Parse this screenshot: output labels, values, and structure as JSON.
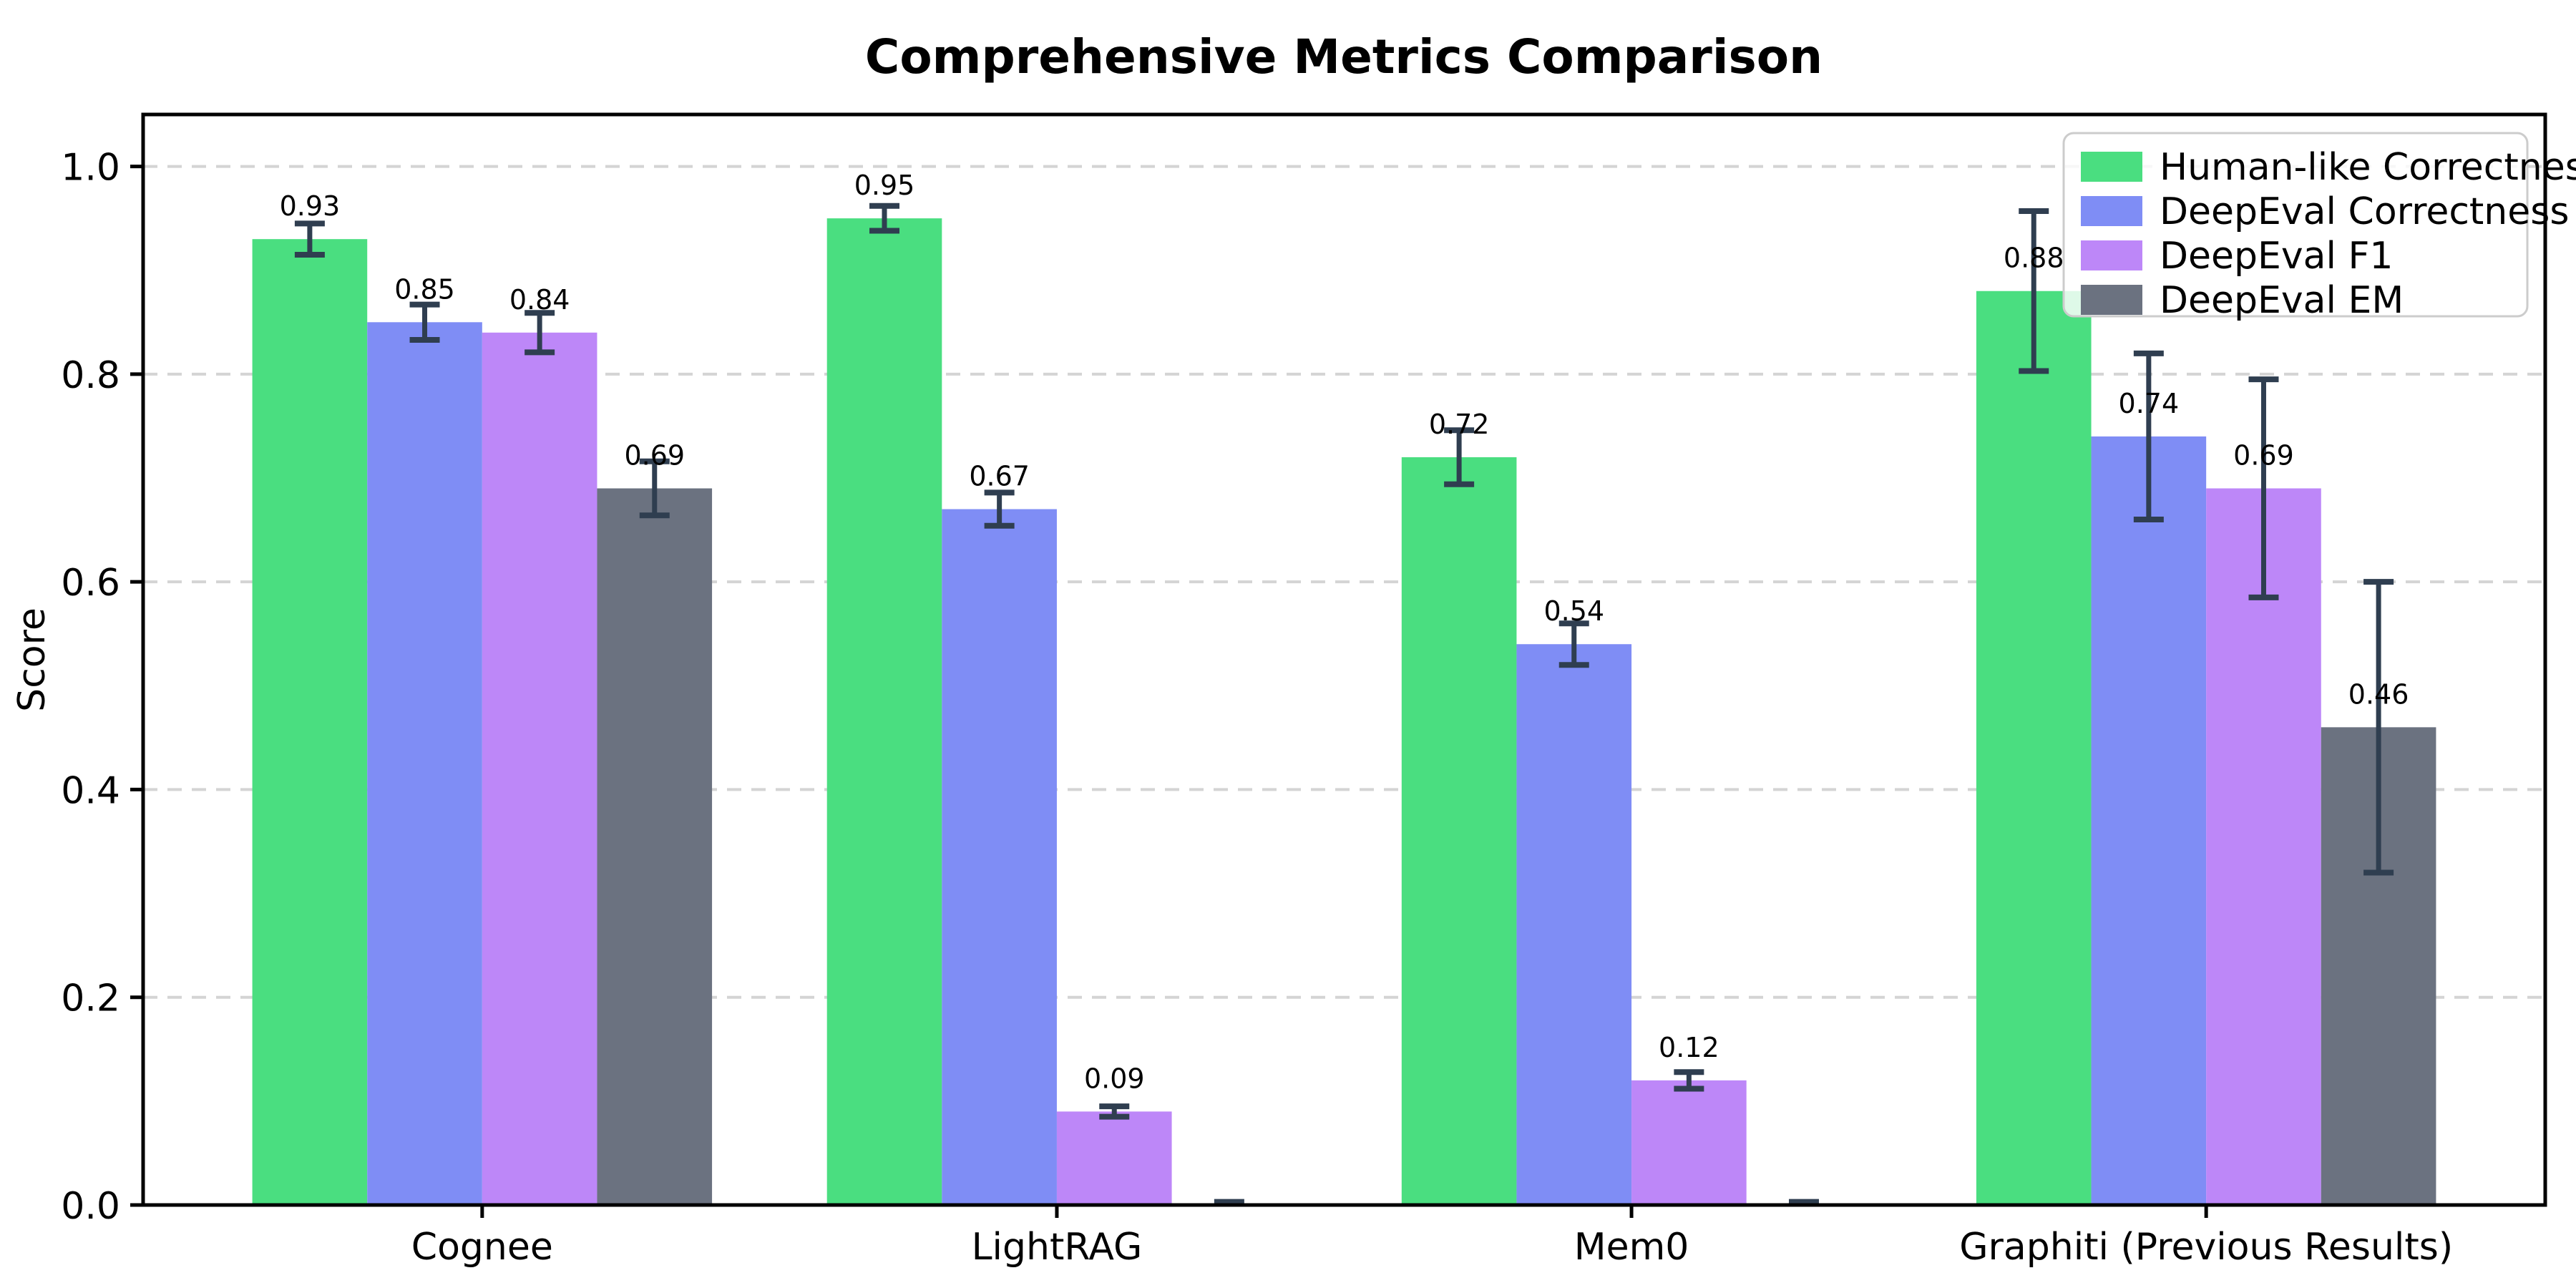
{
  "title": "Comprehensive Metrics Comparison",
  "chart_data": {
    "type": "bar",
    "title": "Comprehensive Metrics Comparison",
    "xlabel": "",
    "ylabel": "Score",
    "categories": [
      "Cognee",
      "LightRAG",
      "Mem0",
      "Graphiti (Previous Results)"
    ],
    "series": [
      {
        "name": "Human-like Correctness",
        "color": "#4ade80",
        "values": [
          0.93,
          0.95,
          0.72,
          0.88
        ],
        "errors": [
          0.015,
          0.012,
          0.026,
          0.077
        ],
        "bar_labels": [
          "0.93",
          "0.95",
          "0.72",
          "0.88"
        ]
      },
      {
        "name": "DeepEval Correctness",
        "color": "#7f8df5",
        "values": [
          0.85,
          0.67,
          0.54,
          0.74
        ],
        "errors": [
          0.017,
          0.016,
          0.02,
          0.08
        ],
        "bar_labels": [
          "0.85",
          "0.67",
          "0.54",
          "0.74"
        ]
      },
      {
        "name": "DeepEval F1",
        "color": "#bd87f8",
        "values": [
          0.84,
          0.09,
          0.12,
          0.69
        ],
        "errors": [
          0.019,
          0.005,
          0.008,
          0.105
        ],
        "bar_labels": [
          "0.84",
          "0.09",
          "0.12",
          "0.69"
        ]
      },
      {
        "name": "DeepEval EM",
        "color": "#6b7280",
        "values": [
          0.69,
          0.0,
          0.0,
          0.46
        ],
        "errors": [
          0.026,
          0.003,
          0.003,
          0.14
        ],
        "bar_labels": [
          "0.69",
          "",
          "",
          "0.46"
        ]
      }
    ],
    "ylim": [
      0,
      1.05
    ],
    "xlim": [
      -0.59,
      3.59
    ],
    "bar_width": 0.2,
    "yticks": [
      0.0,
      0.2,
      0.4,
      0.6,
      0.8,
      1.0
    ],
    "ytick_labels": [
      "0.0",
      "0.2",
      "0.4",
      "0.6",
      "0.8",
      "1.0"
    ],
    "grid": "horizontal-dashed",
    "legend_position": "upper-right",
    "styles": {
      "error_color": "#2f3e50",
      "grid_color": "#d4d4d4",
      "spine_color": "#000000",
      "label_color": "#000000",
      "legend_border_color": "#cccccc",
      "background": "#ffffff"
    }
  }
}
